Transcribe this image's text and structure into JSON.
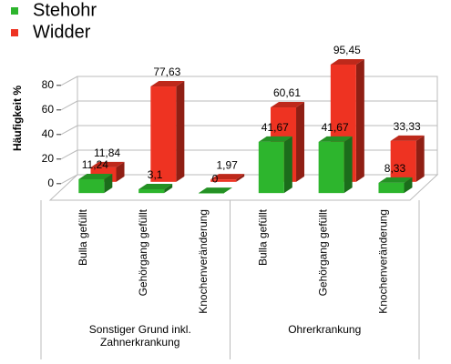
{
  "chart_data": {
    "type": "bar3d",
    "ylabel": "Häufigkeit %",
    "categories": [
      "Bulla gefüllt",
      "Gehörgang gefüllt",
      "Knochenveränderung",
      "Bulla gefüllt",
      "Gehörgang gefüllt",
      "Knochenveränderung"
    ],
    "groups": [
      {
        "name": "Sonstiger Grund inkl. Zahnerkrankung",
        "size": 3
      },
      {
        "name": "Ohrerkrankung",
        "size": 3
      }
    ],
    "series": [
      {
        "name": "Stehohr",
        "color": "#2db52d",
        "values": [
          11.24,
          3.1,
          0,
          41.67,
          41.67,
          8.33
        ],
        "value_labels": [
          "11,24",
          "3,1",
          "0",
          "41,67",
          "41,67",
          "8,33"
        ]
      },
      {
        "name": "Widder",
        "color": "#ee3322",
        "values": [
          11.84,
          77.63,
          1.97,
          60.61,
          95.45,
          33.33
        ],
        "value_labels": [
          "11,84",
          "77,63",
          "1,97",
          "60,61",
          "95,45",
          "33,33"
        ]
      }
    ],
    "ylim": [
      0,
      80
    ],
    "yticks": [
      0,
      20,
      40,
      60,
      80
    ],
    "grid": true,
    "legend": "top-left"
  }
}
